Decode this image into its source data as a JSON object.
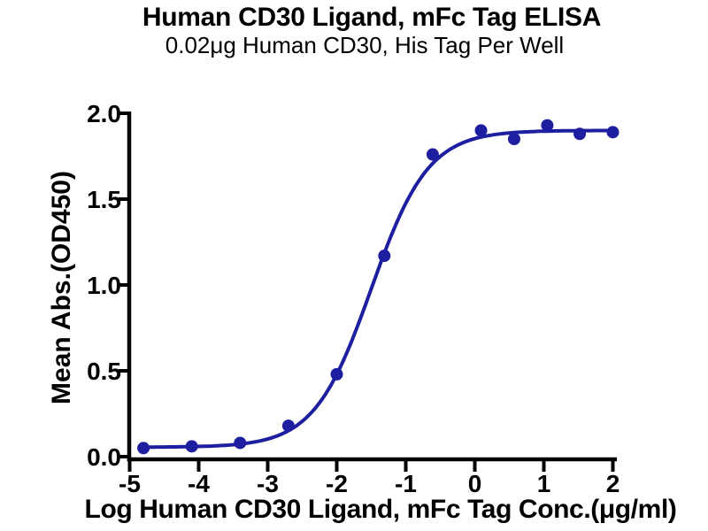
{
  "chart_data": {
    "type": "scatter",
    "title": "Human CD30 Ligand, mFc Tag ELISA",
    "subtitle": "0.02μg Human CD30, His Tag Per Well",
    "xlabel": "Log Human CD30 Ligand, mFc Tag Conc.(μg/ml)",
    "ylabel": "Mean Abs.(OD450)",
    "x_ticks": [
      "-5",
      "-4",
      "-3",
      "-2",
      "-1",
      "0",
      "1",
      "2"
    ],
    "x_tick_values": [
      -5,
      -4,
      -3,
      -2,
      -1,
      0,
      1,
      2
    ],
    "y_ticks": [
      "0.0",
      "0.5",
      "1.0",
      "1.5",
      "2.0"
    ],
    "y_tick_values": [
      0,
      0.5,
      1.0,
      1.5,
      2.0
    ],
    "xlim": [
      -5,
      2.05
    ],
    "ylim": [
      0,
      2.0
    ],
    "grid": false,
    "legend": "none",
    "axis_color": "#000000",
    "text_color": "#000000",
    "background": "#ffffff",
    "series": [
      {
        "color": "#1e1ea0",
        "marker": "circle",
        "points": [
          {
            "x": -4.8,
            "y": 0.05
          },
          {
            "x": -4.1,
            "y": 0.06
          },
          {
            "x": -3.4,
            "y": 0.08
          },
          {
            "x": -2.7,
            "y": 0.18
          },
          {
            "x": -2.0,
            "y": 0.48
          },
          {
            "x": -1.31,
            "y": 1.17
          },
          {
            "x": -0.61,
            "y": 1.76
          },
          {
            "x": 0.09,
            "y": 1.9
          },
          {
            "x": 0.57,
            "y": 1.85
          },
          {
            "x": 1.05,
            "y": 1.93
          },
          {
            "x": 1.52,
            "y": 1.88
          },
          {
            "x": 2.0,
            "y": 1.89
          }
        ],
        "fit_4pl": {
          "bottom": 0.055,
          "top": 1.9,
          "logEC50": -1.5,
          "hillslope": 1.05
        }
      }
    ]
  }
}
